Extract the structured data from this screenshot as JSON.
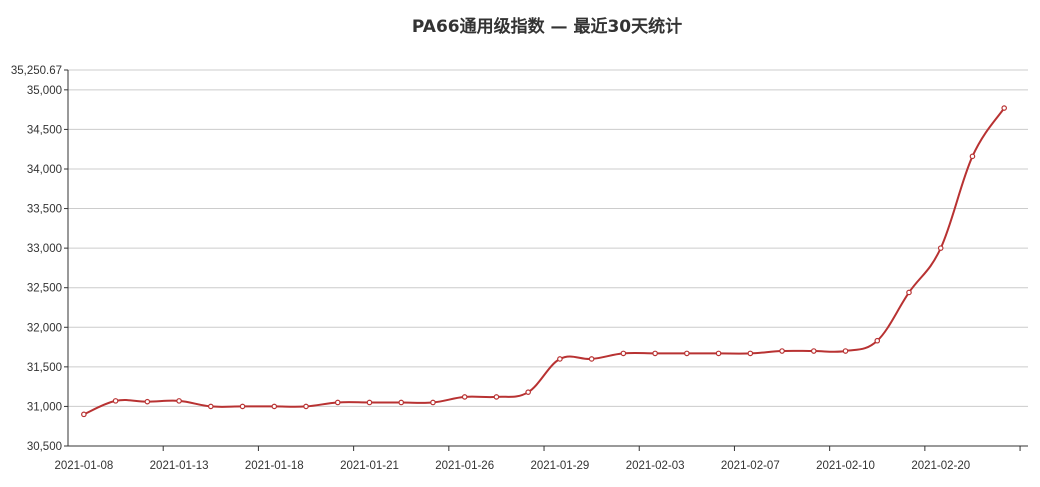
{
  "chart_data": {
    "type": "line",
    "title": "PA66通用级指数   —   最近30天统计",
    "xlabel": "",
    "ylabel": "",
    "ylim": [
      30500,
      35250.67
    ],
    "y_max_label": "35,250.67",
    "y_ticks": [
      "30,500",
      "31,000",
      "31,500",
      "32,000",
      "32,500",
      "33,000",
      "33,500",
      "34,000",
      "34,500",
      "35,000"
    ],
    "y_tick_values": [
      30500,
      31000,
      31500,
      32000,
      32500,
      33000,
      33500,
      34000,
      34500,
      35000
    ],
    "x_tick_labels": [
      "2021-01-08",
      "2021-01-13",
      "2021-01-18",
      "2021-01-21",
      "2021-01-26",
      "2021-01-29",
      "2021-02-03",
      "2021-02-07",
      "2021-02-10",
      "2021-02-20"
    ],
    "grid": true,
    "line_color": "#b83232",
    "series": [
      {
        "values": [
          30900,
          31070,
          31060,
          31070,
          31000,
          31000,
          31000,
          31000,
          31050,
          31050,
          31050,
          31050,
          31120,
          31120,
          31180,
          31600,
          31600,
          31670,
          31670,
          31670,
          31670,
          31670,
          31700,
          31700,
          31700,
          31830,
          32440,
          33000,
          34160,
          34770
        ]
      }
    ]
  }
}
